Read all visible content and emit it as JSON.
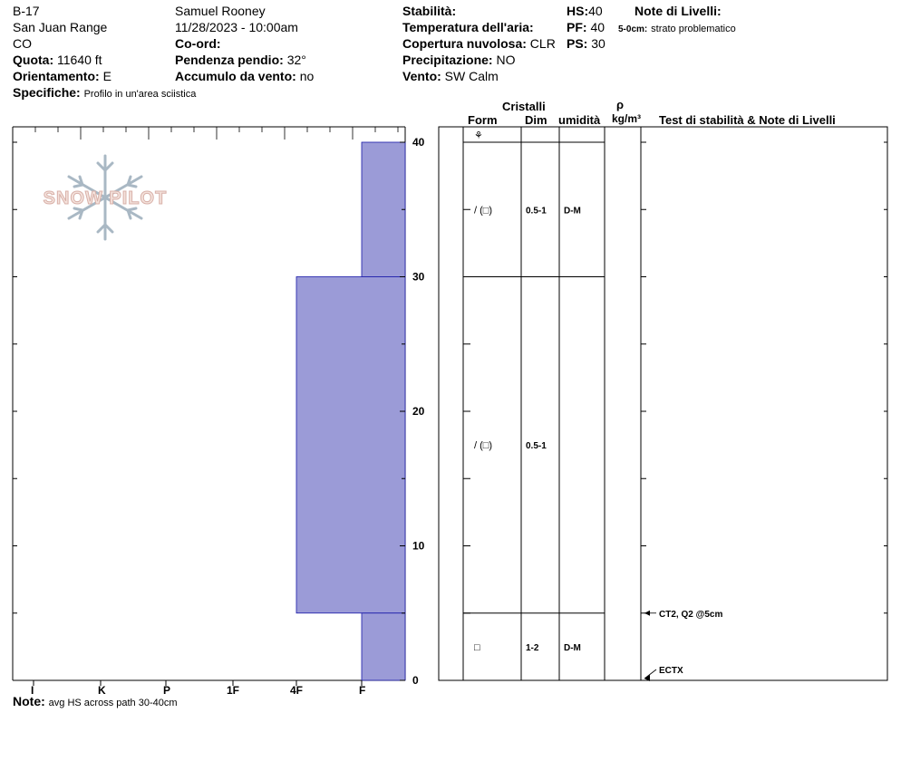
{
  "header": {
    "id": "B-17",
    "range": "San Juan Range",
    "state": "CO",
    "elevation_label": "Quota:",
    "elevation_value": "11640 ft",
    "aspect_label": "Orientamento:",
    "aspect_value": "E",
    "specifics_label": "Specifiche:",
    "specifics_value": "Profilo in un'area sciistica",
    "observer": "Samuel  Rooney",
    "datetime": "11/28/2023 - 10:00am",
    "coord_label": "Co-ord:",
    "slope_label": "Pendenza pendio:",
    "slope_value": "32°",
    "wind_load_label": "Accumulo da vento:",
    "wind_load_value": "no",
    "stability_label": "Stabilità:",
    "air_temp_label": "Temperatura dell'aria:",
    "sky_label": "Copertura nuvolosa:",
    "sky_value": "CLR",
    "precip_label": "Precipitazione:",
    "precip_value": "NO",
    "wind_label": "Vento:",
    "wind_value": "SW Calm",
    "hs_label": "HS:",
    "hs_value": "40",
    "pf_label": "PF:",
    "pf_value": "40",
    "ps_label": "PS:",
    "ps_value": "30",
    "layer_notes_label": "Note di Livelli:",
    "layer_note_depth": "5-0cm:",
    "layer_note_text": "strato problematico"
  },
  "logo_text": "SNOW PILOT",
  "columns": {
    "crystals": "Cristalli",
    "form": "Form",
    "size": "Dim",
    "moisture": "umidità",
    "rho": "ρ",
    "density_unit": "kg/m³",
    "tests": "Test di stabilità & Note di Livelli"
  },
  "hardness_labels": [
    "I",
    "K",
    "P",
    "1F",
    "4F",
    "F"
  ],
  "depth_ticks": [
    "40",
    "30",
    "20",
    "10",
    "0"
  ],
  "note_label": "Note:",
  "note_text": "avg HS across path 30-40cm",
  "chart_data": {
    "type": "snow_profile",
    "total_depth_cm": 40,
    "layers": [
      {
        "top": 40,
        "bottom": 30,
        "hardness": "F",
        "form": "/ (□)",
        "size": "0.5-1",
        "moisture": "D-M"
      },
      {
        "top": 30,
        "bottom": 5,
        "hardness": "4F",
        "form": "/ (□)",
        "size": "0.5-1",
        "moisture": ""
      },
      {
        "top": 5,
        "bottom": 0,
        "hardness": "F",
        "form": "□",
        "size": "1-2",
        "moisture": "D-M"
      }
    ],
    "surface_form": "⚘",
    "tests": [
      {
        "depth": 5,
        "text": "CT2, Q2 @5cm"
      },
      {
        "depth": 0,
        "text": "ECTX"
      }
    ],
    "bar_color": "#9b9bd7"
  }
}
